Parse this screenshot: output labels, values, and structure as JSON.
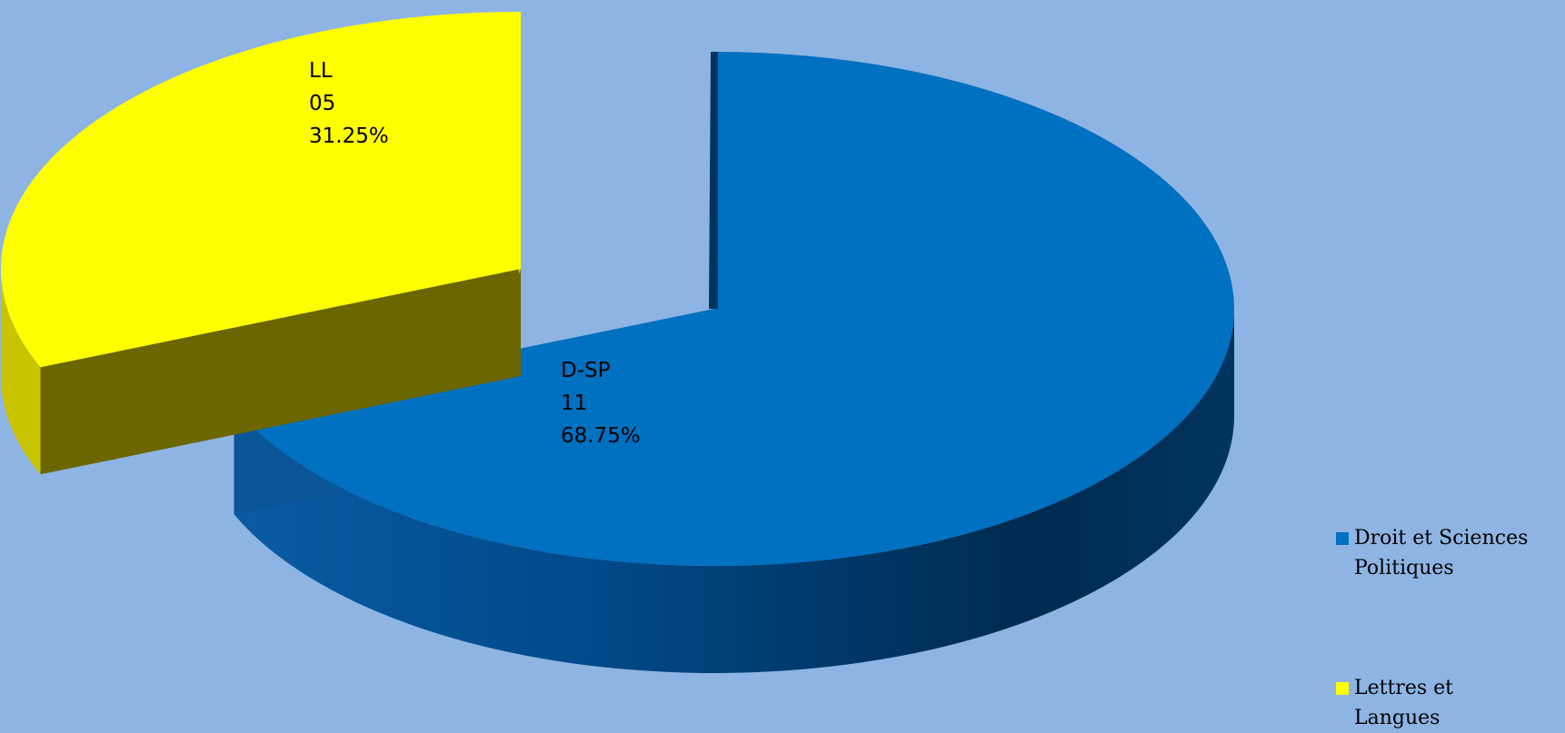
{
  "chart_data": {
    "type": "pie",
    "three_d": true,
    "exploded": "Lettres et Langues",
    "slices": [
      {
        "legend": "Droit et Sciences Politiques",
        "short_label": "D-SP",
        "value_text": "11",
        "value": 11,
        "percent_text": "68.75%",
        "percent": 68.75,
        "color": "#0070c0"
      },
      {
        "legend": "Lettres et Langues",
        "short_label": "LL",
        "value_text": "05",
        "value": 5,
        "percent_text": "31.25%",
        "percent": 31.25,
        "color": "#ffff00"
      }
    ],
    "legend_position": "right"
  },
  "colors": {
    "background": "#8eb4e3"
  }
}
